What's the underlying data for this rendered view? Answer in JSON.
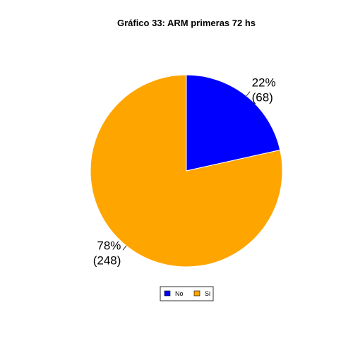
{
  "chart_data": {
    "type": "pie",
    "title": "Gráfico 33: ARM primeras 72 hs",
    "slices": [
      {
        "label": "No",
        "value": 68,
        "percent_label": "22%",
        "count_label": "(68)",
        "color": "#0000FF"
      },
      {
        "label": "Si",
        "value": 248,
        "percent_label": "78%",
        "count_label": "(248)",
        "color": "#FFA500"
      }
    ],
    "legend": {
      "position": "bottom",
      "entries": [
        "No",
        "Si"
      ]
    }
  }
}
